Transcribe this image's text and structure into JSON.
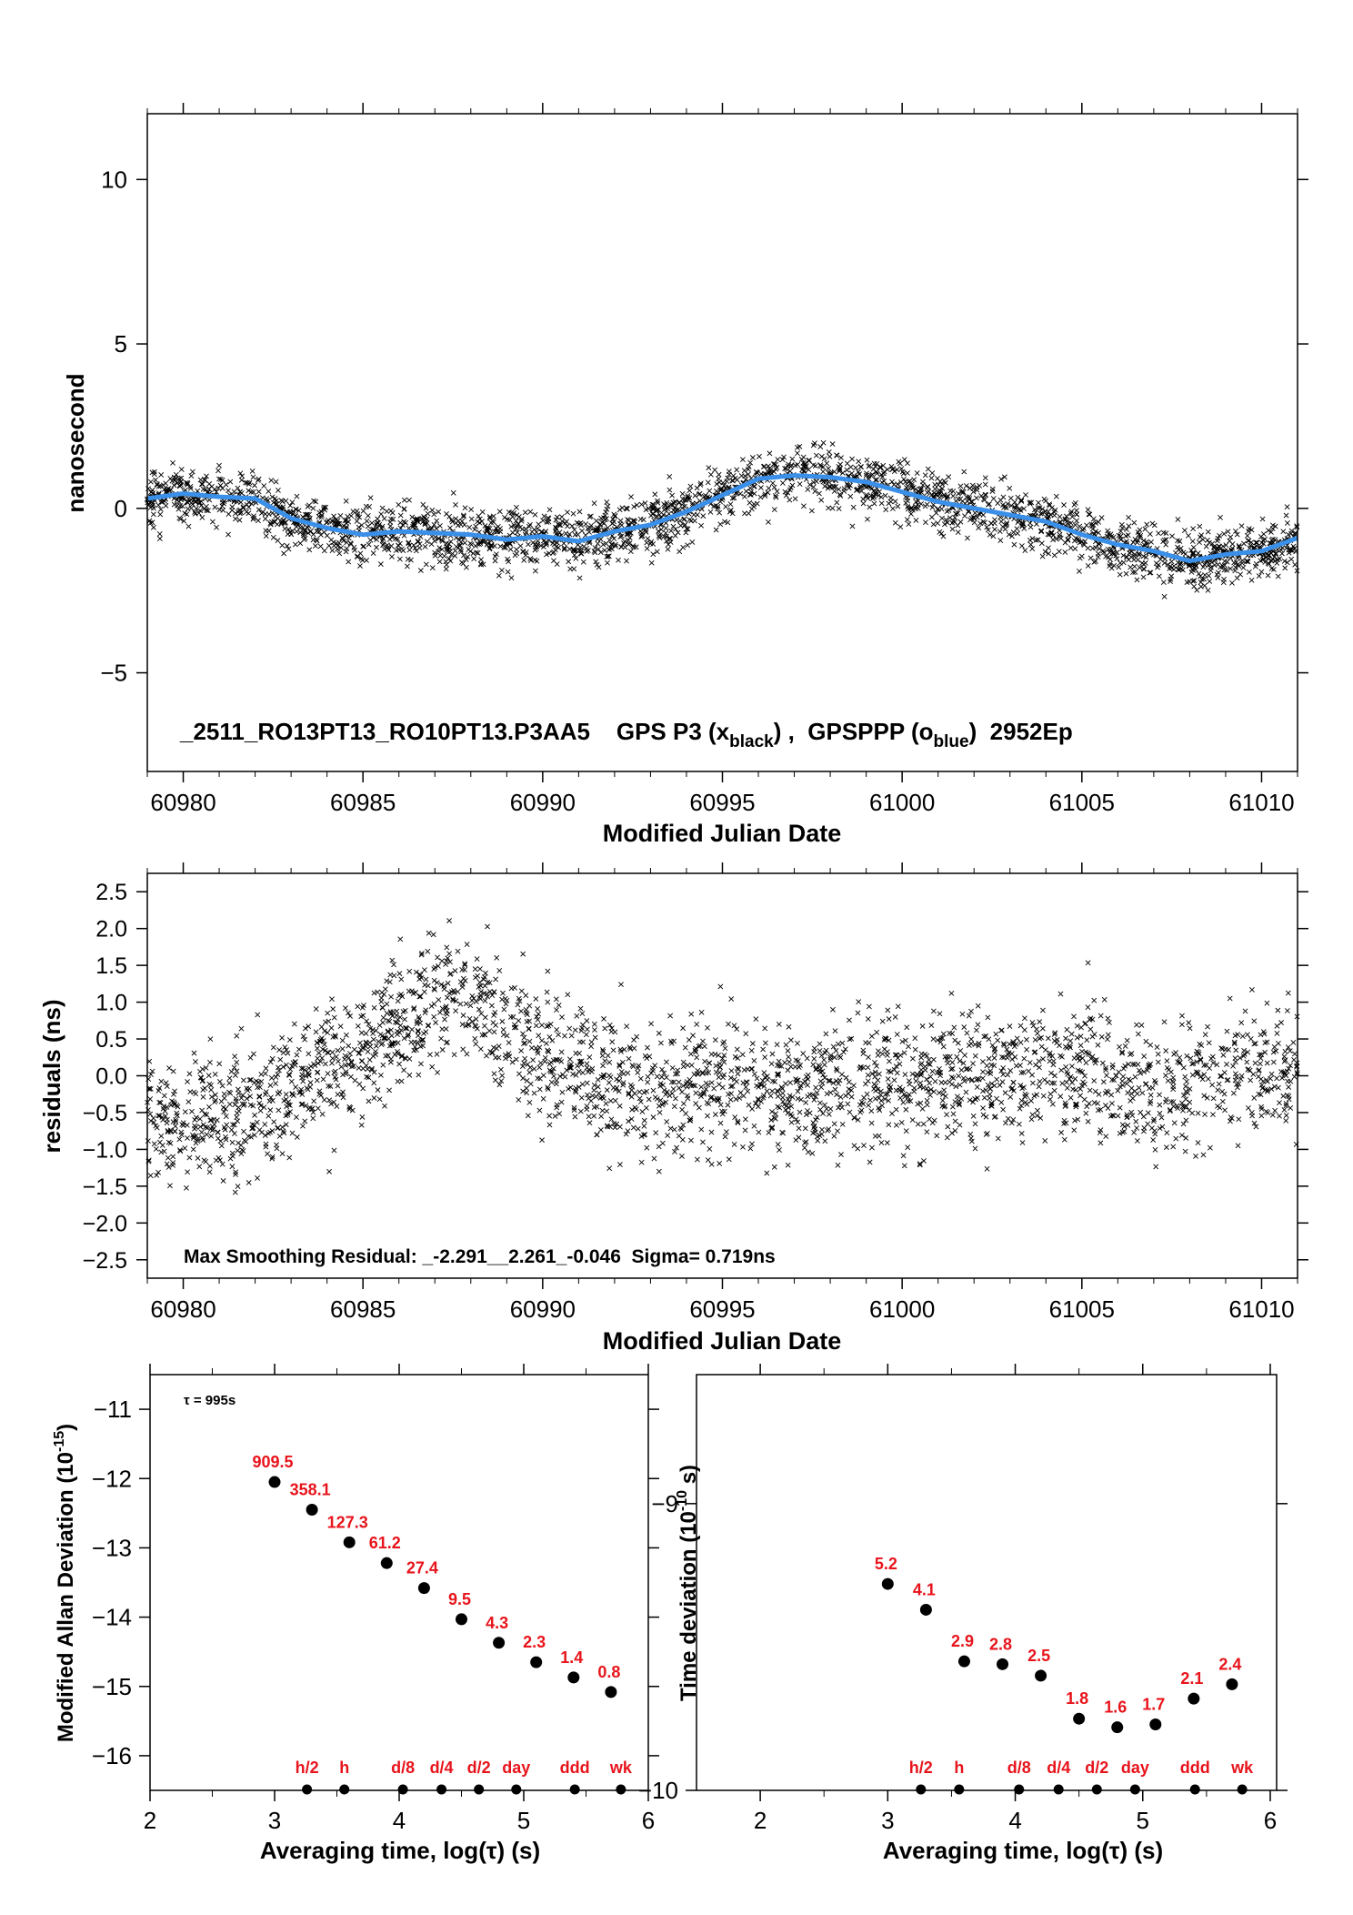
{
  "figure": {
    "panel1": {
      "type": "scatter",
      "xlabel": "Modified Julian Date",
      "ylabel": "nanosecond",
      "xlim": [
        60979,
        61011
      ],
      "ylim": [
        -8,
        12
      ],
      "xticks": [
        "60980",
        "60985",
        "60990",
        "60995",
        "61000",
        "61005",
        "61010"
      ],
      "yticks": [
        "10",
        "5",
        "0",
        "−5"
      ],
      "caption_prefix": "_2511_RO13PT13_RO10PT13.P3AA5    GPS P3 (x",
      "caption_sub1": "black",
      "caption_mid": ") ,  GPSPPP (o",
      "caption_sub2": "blue",
      "caption_suffix": ")  2952Ep",
      "series_colors": {
        "gps_p3": "#000000",
        "gpsppp": "#3a8fe8"
      },
      "gpsppp_trend": {
        "x": [
          60979,
          60980,
          60981,
          60982,
          60983,
          60984,
          60985,
          60986,
          60987,
          60988,
          60989,
          60990,
          60991,
          60992,
          60993,
          60994,
          60995,
          60996,
          60997,
          60998,
          60999,
          61000,
          61001,
          61002,
          61003,
          61004,
          61005,
          61006,
          61007,
          61008,
          61009,
          61010,
          61011
        ],
        "y": [
          0.3,
          0.45,
          0.35,
          0.3,
          -0.3,
          -0.6,
          -0.8,
          -0.7,
          -0.75,
          -0.8,
          -0.95,
          -0.85,
          -1.0,
          -0.7,
          -0.5,
          -0.1,
          0.4,
          0.9,
          1.0,
          0.95,
          0.8,
          0.5,
          0.2,
          0.0,
          -0.2,
          -0.4,
          -0.8,
          -1.1,
          -1.3,
          -1.6,
          -1.4,
          -1.3,
          -0.9
        ]
      }
    },
    "panel2": {
      "type": "scatter",
      "xlabel": "Modified Julian Date",
      "ylabel": "residuals (ns)",
      "xlim": [
        60979,
        61011
      ],
      "ylim": [
        -2.75,
        2.75
      ],
      "xticks": [
        "60980",
        "60985",
        "60990",
        "60995",
        "61000",
        "61005",
        "61010"
      ],
      "yticks": [
        "2.5",
        "2.0",
        "1.5",
        "1.0",
        "0.5",
        "0.0",
        "−0.5",
        "−1.0",
        "−1.5",
        "−2.0",
        "−2.5"
      ],
      "annotation": "Max Smoothing Residual: _-2.291__2.261_-0.046  Sigma= 0.719ns"
    },
    "panel3": {
      "type": "scatter",
      "xlabel": "Averaging time, log(τ) (s)",
      "ylabel_main": "Modified Allan Deviation (10",
      "ylabel_sup": "-15",
      "ylabel_end": ")",
      "xlim": [
        2,
        6
      ],
      "ylim": [
        -16.5,
        -10.5
      ],
      "xticks": [
        "2",
        "3",
        "4",
        "5",
        "6"
      ],
      "yticks": [
        "−11",
        "−12",
        "−13",
        "−14",
        "−15",
        "−16"
      ],
      "tau_note": "τ = 995s",
      "points_x": [
        3.0,
        3.3,
        3.6,
        3.9,
        4.2,
        4.5,
        4.8,
        5.1,
        5.4,
        5.7
      ],
      "points_y": [
        -12.05,
        -12.45,
        -12.92,
        -13.22,
        -13.58,
        -14.03,
        -14.37,
        -14.65,
        -14.87,
        -15.08
      ],
      "point_labels": [
        "909.5",
        "358.1",
        "127.3",
        "61.2",
        "27.4",
        "9.5",
        "4.3",
        "2.3",
        "1.4",
        "0.8"
      ],
      "marker_labels": [
        "h/2",
        "h",
        "d/8",
        "d/4",
        "d/2",
        "day",
        "ddd",
        "wk"
      ],
      "marker_x": [
        3.26,
        3.56,
        4.03,
        4.34,
        4.64,
        4.94,
        5.41,
        5.78
      ],
      "label_color": "#e8141b"
    },
    "panel4": {
      "type": "scatter",
      "xlabel": "Averaging time, log(τ) (s)",
      "ylabel_main": "Time deviation (10",
      "ylabel_sup": "-10",
      "ylabel_end": " s)",
      "xlim": [
        1.5,
        6.05
      ],
      "ylim": [
        -10.0,
        -8.55
      ],
      "xticks": [
        "2",
        "3",
        "4",
        "5",
        "6"
      ],
      "yticks": [
        "−9",
        "−10"
      ],
      "points_x": [
        3.0,
        3.3,
        3.6,
        3.9,
        4.2,
        4.5,
        4.8,
        5.1,
        5.4,
        5.7
      ],
      "points_y": [
        -9.28,
        -9.37,
        -9.55,
        -9.56,
        -9.6,
        -9.75,
        -9.78,
        -9.77,
        -9.68,
        -9.63
      ],
      "point_labels": [
        "5.2",
        "4.1",
        "2.9",
        "2.8",
        "2.5",
        "1.8",
        "1.6",
        "1.7",
        "2.1",
        "2.4"
      ],
      "marker_labels": [
        "h/2",
        "h",
        "d/8",
        "d/4",
        "d/2",
        "day",
        "ddd",
        "wk"
      ],
      "marker_x": [
        3.26,
        3.56,
        4.03,
        4.34,
        4.64,
        4.94,
        5.41,
        5.78
      ],
      "label_color": "#e8141b"
    }
  }
}
